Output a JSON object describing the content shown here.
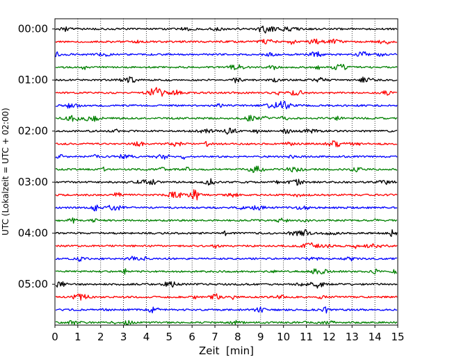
{
  "chart_data": {
    "type": "line",
    "title": "",
    "xlabel": "Zeit  [min]",
    "ylabel": "UTC (Lokalzeit = UTC + 02:00)",
    "xlim": [
      0,
      15
    ],
    "x_ticks": [
      0,
      1,
      2,
      3,
      4,
      5,
      6,
      7,
      8,
      9,
      10,
      11,
      12,
      13,
      14,
      15
    ],
    "x_tick_labels": [
      "0",
      "1",
      "2",
      "3",
      "4",
      "5",
      "6",
      "7",
      "8",
      "9",
      "10",
      "11",
      "12",
      "13",
      "14",
      "15"
    ],
    "y_axis": {
      "unit": "hours UTC",
      "top": 0.0,
      "bottom": 6.0,
      "ticks": [
        0,
        1,
        2,
        3,
        4,
        5
      ],
      "tick_labels": [
        "00:00",
        "01:00",
        "02:00",
        "03:00",
        "04:00",
        "05:00"
      ]
    },
    "grid": {
      "vertical": true,
      "horizontal": false,
      "style": "dotted"
    },
    "legend": "none",
    "trace_minutes_per_line": 15,
    "trace_color_cycle": [
      "#000000",
      "#ff0000",
      "#0000ff",
      "#008000"
    ],
    "series": [
      {
        "start_utc": "00:00",
        "color": "#000000"
      },
      {
        "start_utc": "00:15",
        "color": "#ff0000"
      },
      {
        "start_utc": "00:30",
        "color": "#0000ff"
      },
      {
        "start_utc": "00:45",
        "color": "#008000"
      },
      {
        "start_utc": "01:00",
        "color": "#000000"
      },
      {
        "start_utc": "01:15",
        "color": "#ff0000"
      },
      {
        "start_utc": "01:30",
        "color": "#0000ff"
      },
      {
        "start_utc": "01:45",
        "color": "#008000"
      },
      {
        "start_utc": "02:00",
        "color": "#000000"
      },
      {
        "start_utc": "02:15",
        "color": "#ff0000"
      },
      {
        "start_utc": "02:30",
        "color": "#0000ff"
      },
      {
        "start_utc": "02:45",
        "color": "#008000"
      },
      {
        "start_utc": "03:00",
        "color": "#000000"
      },
      {
        "start_utc": "03:15",
        "color": "#ff0000"
      },
      {
        "start_utc": "03:30",
        "color": "#0000ff"
      },
      {
        "start_utc": "03:45",
        "color": "#008000"
      },
      {
        "start_utc": "04:00",
        "color": "#000000"
      },
      {
        "start_utc": "04:15",
        "color": "#ff0000"
      },
      {
        "start_utc": "04:30",
        "color": "#0000ff"
      },
      {
        "start_utc": "04:45",
        "color": "#008000"
      },
      {
        "start_utc": "05:00",
        "color": "#000000"
      },
      {
        "start_utc": "05:15",
        "color": "#ff0000"
      },
      {
        "start_utc": "05:30",
        "color": "#0000ff"
      },
      {
        "start_utc": "05:45",
        "color": "#008000"
      }
    ]
  }
}
